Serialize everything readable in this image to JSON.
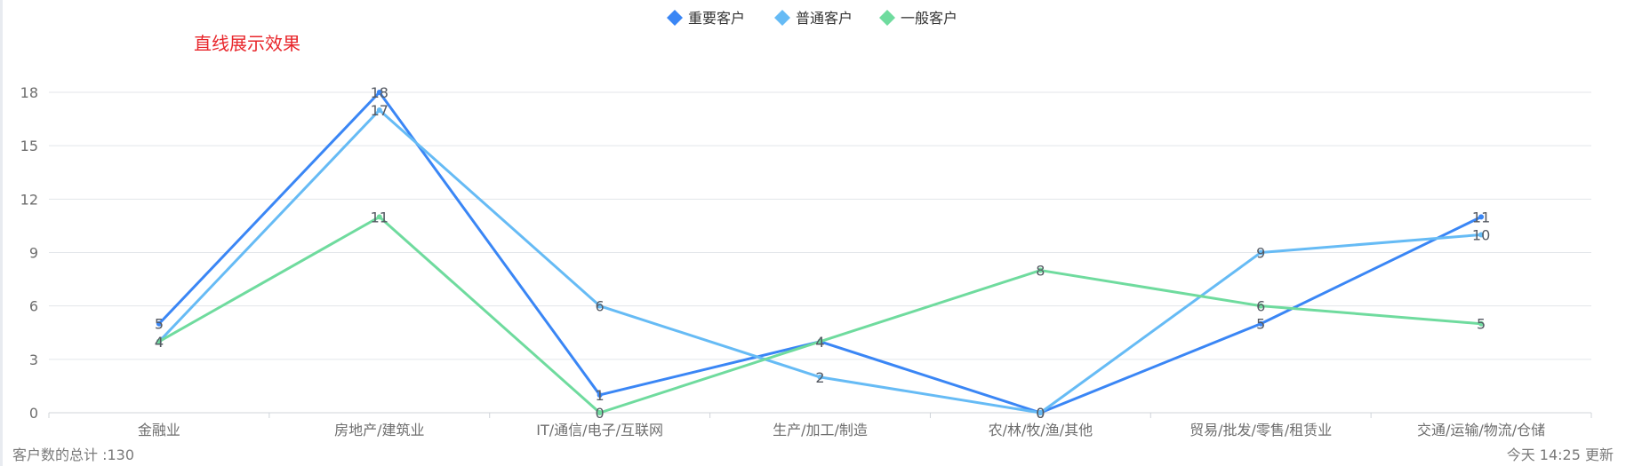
{
  "chart_data": {
    "type": "line",
    "title": "直线展示效果",
    "categories": [
      "金融业",
      "房地产/建筑业",
      "IT/通信/电子/互联网",
      "生产/加工/制造",
      "农/林/牧/渔/其他",
      "贸易/批发/零售/租赁业",
      "交通/运输/物流/仓储"
    ],
    "series": [
      {
        "name": "重要客户",
        "color": "#3a86f5",
        "values": [
          5,
          18,
          1,
          4,
          0,
          5,
          11
        ]
      },
      {
        "name": "普通客户",
        "color": "#66bbf5",
        "values": [
          4,
          17,
          6,
          2,
          0,
          9,
          10
        ]
      },
      {
        "name": "一般客户",
        "color": "#6fdb9e",
        "values": [
          4,
          11,
          0,
          4,
          8,
          6,
          5
        ]
      }
    ],
    "ylim": [
      0,
      18
    ],
    "yticks": [
      0,
      3,
      6,
      9,
      12,
      15,
      18
    ],
    "grid": true,
    "legend_position": "top-center"
  },
  "footer": {
    "left": "客户数的总计 :130",
    "right": "今天 14:25 更新"
  }
}
